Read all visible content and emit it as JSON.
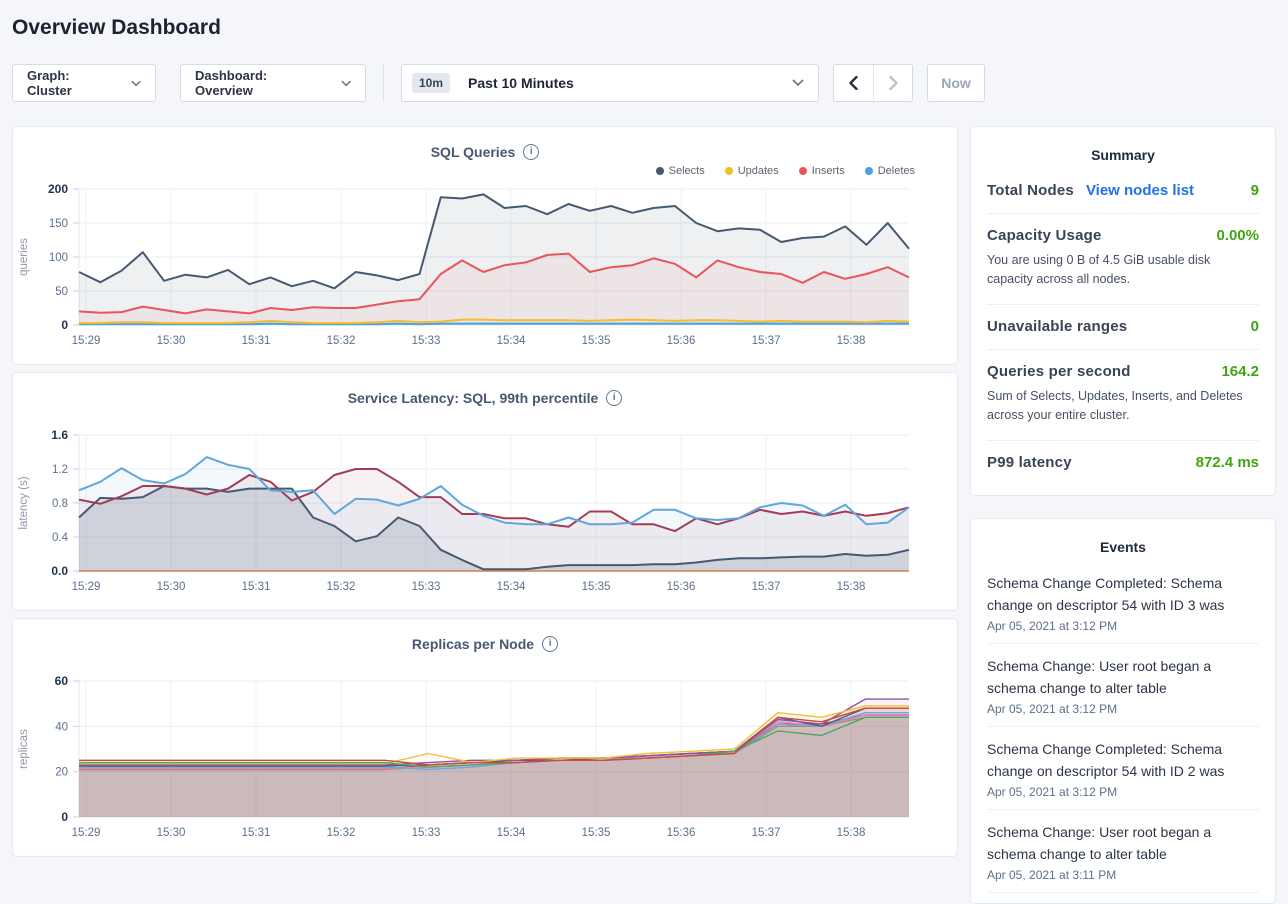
{
  "page": {
    "title": "Overview Dashboard"
  },
  "toolbar": {
    "graph_dropdown": "Graph: Cluster",
    "dashboard_dropdown": "Dashboard: Overview",
    "time_badge": "10m",
    "time_label": "Past 10 Minutes",
    "now_label": "Now"
  },
  "chart_data": [
    {
      "type": "line",
      "title": "SQL Queries",
      "ylabel": "queries",
      "ylim": [
        0,
        200
      ],
      "x": "15:29-15:38",
      "legend": [
        "Selects",
        "Updates",
        "Inserts",
        "Deletes"
      ]
    },
    {
      "type": "line",
      "title": "Service Latency: SQL, 99th percentile",
      "ylabel": "latency (s)",
      "ylim": [
        0,
        1.6
      ],
      "x": "15:29-15:38"
    },
    {
      "type": "line",
      "title": "Replicas per Node",
      "ylabel": "replicas",
      "ylim": [
        0,
        60
      ],
      "x": "15:29-15:38"
    }
  ],
  "charts": {
    "sql": {
      "title": "SQL Queries",
      "ylabel": "queries",
      "ymax": 200,
      "yticks": [
        "0",
        "50",
        "100",
        "150",
        "200"
      ],
      "xticks": [
        "15:29",
        "15:30",
        "15:31",
        "15:32",
        "15:33",
        "15:34",
        "15:35",
        "15:36",
        "15:37",
        "15:38"
      ],
      "series": [
        {
          "name": "Selects",
          "color": "#475872",
          "fill": 0.09,
          "width": 2,
          "values": [
            78,
            63,
            80,
            107,
            65,
            74,
            70,
            81,
            60,
            70,
            57,
            65,
            54,
            78,
            73,
            66,
            75,
            188,
            186,
            192,
            172,
            175,
            163,
            178,
            168,
            175,
            165,
            172,
            175,
            150,
            138,
            142,
            140,
            122,
            128,
            130,
            145,
            118,
            150,
            112
          ]
        },
        {
          "name": "Updates",
          "color": "#f2be2c",
          "fill": 0,
          "width": 2,
          "values": [
            3,
            3,
            4,
            4,
            3,
            3,
            3,
            3,
            4,
            6,
            4,
            3,
            3,
            3,
            4,
            6,
            4,
            5,
            8,
            8,
            7,
            7,
            7,
            7,
            6,
            7,
            8,
            7,
            6,
            7,
            7,
            6,
            5,
            6,
            5,
            5,
            5,
            4,
            6,
            5
          ]
        },
        {
          "name": "Inserts",
          "color": "#e8555b",
          "fill": 0.08,
          "width": 2,
          "values": [
            20,
            18,
            19,
            27,
            22,
            17,
            23,
            20,
            17,
            25,
            22,
            26,
            25,
            25,
            30,
            35,
            38,
            75,
            95,
            78,
            88,
            92,
            103,
            105,
            78,
            85,
            88,
            98,
            90,
            70,
            95,
            85,
            78,
            75,
            62,
            78,
            68,
            75,
            85,
            70
          ]
        },
        {
          "name": "Deletes",
          "color": "#4ba1e1",
          "fill": 0,
          "width": 2,
          "values": [
            1,
            1,
            1,
            1,
            1,
            1,
            1,
            1,
            1,
            2,
            1,
            1,
            1,
            1,
            1,
            2,
            1,
            2,
            2,
            2,
            2,
            2,
            2,
            2,
            2,
            2,
            2,
            2,
            2,
            2,
            2,
            2,
            2,
            2,
            2,
            2,
            2,
            2,
            2,
            2
          ]
        }
      ]
    },
    "latency": {
      "title": "Service Latency: SQL, 99th percentile",
      "ylabel": "latency (s)",
      "ymax": 1.6,
      "yticks": [
        "0.0",
        "0.4",
        "0.8",
        "1.2",
        "1.6"
      ],
      "xticks": [
        "15:29",
        "15:30",
        "15:31",
        "15:32",
        "15:33",
        "15:34",
        "15:35",
        "15:36",
        "15:37",
        "15:38"
      ],
      "series": [
        {
          "name": "",
          "color": "#5fa6dd",
          "fill": 0.08,
          "width": 2,
          "values": [
            0.95,
            1.05,
            1.21,
            1.07,
            1.03,
            1.14,
            1.34,
            1.25,
            1.2,
            0.95,
            0.93,
            0.95,
            0.67,
            0.85,
            0.84,
            0.77,
            0.85,
            1.0,
            0.78,
            0.65,
            0.57,
            0.55,
            0.55,
            0.63,
            0.55,
            0.55,
            0.57,
            0.72,
            0.72,
            0.62,
            0.6,
            0.62,
            0.75,
            0.8,
            0.77,
            0.65,
            0.78,
            0.55,
            0.57,
            0.75
          ]
        },
        {
          "name": "",
          "color": "#a23d57",
          "fill": 0.07,
          "width": 2,
          "values": [
            0.84,
            0.79,
            0.88,
            1.0,
            1.0,
            0.97,
            0.9,
            0.97,
            1.13,
            1.05,
            0.83,
            0.93,
            1.13,
            1.2,
            1.2,
            1.05,
            0.87,
            0.87,
            0.67,
            0.67,
            0.62,
            0.62,
            0.55,
            0.52,
            0.7,
            0.7,
            0.55,
            0.55,
            0.47,
            0.62,
            0.55,
            0.62,
            0.72,
            0.67,
            0.7,
            0.65,
            0.7,
            0.65,
            0.68,
            0.75
          ]
        },
        {
          "name": "",
          "color": "#475872",
          "fill": 0.16,
          "width": 2,
          "values": [
            0.63,
            0.86,
            0.85,
            0.87,
            1.0,
            0.97,
            0.97,
            0.93,
            0.97,
            0.97,
            0.97,
            0.63,
            0.53,
            0.35,
            0.41,
            0.63,
            0.53,
            0.25,
            0.13,
            0.02,
            0.02,
            0.02,
            0.05,
            0.07,
            0.07,
            0.07,
            0.07,
            0.08,
            0.08,
            0.1,
            0.13,
            0.15,
            0.15,
            0.16,
            0.17,
            0.17,
            0.2,
            0.18,
            0.19,
            0.25
          ]
        },
        {
          "name": "",
          "color": "#c8824d",
          "fill": 0,
          "width": 1.5,
          "values": [
            0,
            0,
            0,
            0,
            0,
            0,
            0,
            0,
            0,
            0,
            0,
            0,
            0,
            0,
            0,
            0,
            0,
            0,
            0,
            0,
            0,
            0,
            0,
            0,
            0,
            0,
            0,
            0,
            0,
            0,
            0,
            0,
            0,
            0,
            0,
            0,
            0,
            0,
            0,
            0
          ]
        }
      ]
    },
    "replicas": {
      "title": "Replicas per Node",
      "ylabel": "replicas",
      "ymax": 60,
      "yticks": [
        "0",
        "20",
        "40",
        "60"
      ],
      "xticks": [
        "15:29",
        "15:30",
        "15:31",
        "15:32",
        "15:33",
        "15:34",
        "15:35",
        "15:36",
        "15:37",
        "15:38"
      ],
      "series": [
        {
          "name": "",
          "color": "#cf4940",
          "fill": 0.07,
          "width": 1.4,
          "values": [
            25,
            25,
            25,
            25,
            25,
            25,
            25,
            25,
            23,
            24,
            24,
            25,
            25,
            26,
            27,
            28,
            44,
            42,
            48,
            48
          ]
        },
        {
          "name": "",
          "color": "#49aa63",
          "fill": 0.07,
          "width": 1.4,
          "values": [
            24,
            24,
            24,
            24,
            24,
            24,
            24,
            24,
            22,
            23,
            24,
            25,
            25,
            26,
            27,
            29,
            38,
            36,
            44,
            44
          ]
        },
        {
          "name": "",
          "color": "#f3be38",
          "fill": 0.07,
          "width": 1.4,
          "values": [
            23.5,
            23.5,
            23.5,
            23.5,
            23.5,
            23.5,
            23.5,
            23.5,
            28,
            24,
            26,
            26,
            26,
            28,
            29,
            30,
            46,
            44,
            49,
            49
          ]
        },
        {
          "name": "",
          "color": "#8f54a0",
          "fill": 0.07,
          "width": 1.4,
          "values": [
            23,
            23,
            23,
            23,
            23,
            23,
            23,
            23,
            24,
            25,
            25,
            26,
            26,
            27,
            28,
            29,
            43,
            41,
            52,
            52
          ]
        },
        {
          "name": "",
          "color": "#59616e",
          "fill": 0.07,
          "width": 1.4,
          "values": [
            22.5,
            22.5,
            22.5,
            22.5,
            22.5,
            22.5,
            22.5,
            22.5,
            23,
            24,
            25,
            26,
            26,
            27,
            28,
            29,
            44,
            40,
            48,
            48
          ]
        },
        {
          "name": "",
          "color": "#6fa8dc",
          "fill": 0.07,
          "width": 1.4,
          "values": [
            22,
            22,
            22,
            22,
            22,
            22,
            22,
            22,
            21,
            22,
            24,
            25,
            25,
            26,
            27,
            28,
            41,
            40,
            46,
            46
          ]
        },
        {
          "name": "",
          "color": "#e57fc0",
          "fill": 0.07,
          "width": 1.4,
          "values": [
            21.5,
            21.5,
            21.5,
            21.5,
            21.5,
            21.5,
            21.5,
            21.5,
            22,
            23,
            24,
            25,
            25,
            27,
            28,
            29,
            42,
            40,
            45,
            45
          ]
        },
        {
          "name": "",
          "color": "#a88f6a",
          "fill": 0.12,
          "width": 1.4,
          "values": [
            21,
            21,
            21,
            21,
            21,
            21,
            21,
            21,
            22,
            23,
            24,
            25,
            25,
            26,
            27,
            28,
            40,
            40,
            44,
            44
          ]
        },
        {
          "name": "",
          "color": "#9e3a66",
          "fill": 0.07,
          "width": 1.4,
          "values": [
            21,
            21,
            21,
            21,
            21,
            21,
            21,
            21,
            23,
            24,
            25,
            25,
            26,
            27,
            28,
            29,
            41,
            41,
            45,
            45
          ]
        }
      ]
    }
  },
  "summary": {
    "title": "Summary",
    "rows": [
      {
        "label": "Total Nodes",
        "link": "View nodes list",
        "value": "9"
      },
      {
        "label": "Capacity Usage",
        "value": "0.00%",
        "desc": "You are using 0 B of 4.5 GiB usable disk capacity across all nodes."
      },
      {
        "label": "Unavailable ranges",
        "value": "0"
      },
      {
        "label": "Queries per second",
        "value": "164.2",
        "desc": "Sum of Selects, Updates, Inserts, and Deletes across your entire cluster."
      },
      {
        "label": "P99 latency",
        "value": "872.4 ms"
      }
    ]
  },
  "events": {
    "title": "Events",
    "items": [
      {
        "message": "Schema Change Completed: Schema change on descriptor 54 with ID 3 was",
        "time": "Apr 05, 2021 at 3:12 PM"
      },
      {
        "message": "Schema Change: User root began a schema change to alter table",
        "time": "Apr 05, 2021 at 3:12 PM"
      },
      {
        "message": "Schema Change Completed: Schema change on descriptor 54 with ID 2 was",
        "time": "Apr 05, 2021 at 3:12 PM"
      },
      {
        "message": "Schema Change: User root began a schema change to alter table",
        "time": "Apr 05, 2021 at 3:11 PM"
      }
    ]
  },
  "colors": {
    "accent_link": "#2271e8",
    "status_green": "#3fa511",
    "series_selects": "#475872",
    "series_updates": "#f2be2c",
    "series_inserts": "#e8555b",
    "series_deletes": "#4ba1e1"
  }
}
